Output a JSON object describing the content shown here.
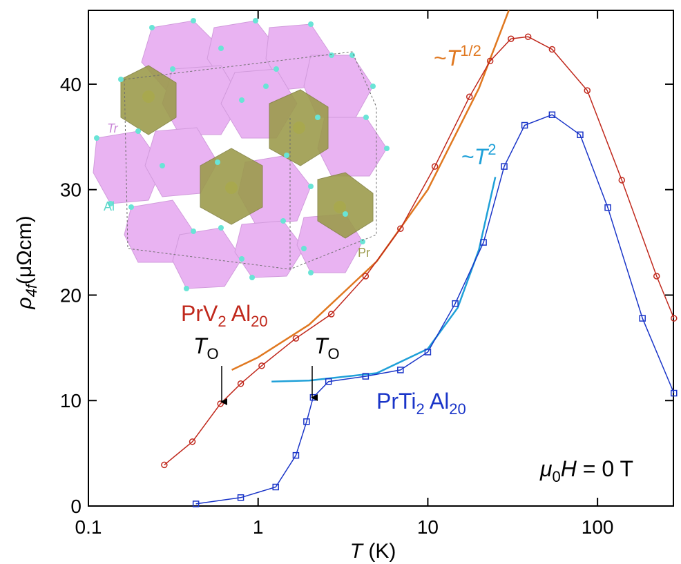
{
  "chart_data": {
    "type": "scatter",
    "xscale": "log",
    "xlim": [
      0.1,
      280
    ],
    "ylim": [
      0,
      47
    ],
    "xticks": [
      0.1,
      1,
      10,
      100
    ],
    "yticks": [
      0,
      10,
      20,
      30,
      40
    ],
    "xlabel": {
      "var": "T",
      "unit": "(K)"
    },
    "ylabel": {
      "sym": "ρ",
      "sub": "4f",
      "unit": "(μΩcm)"
    },
    "series": [
      {
        "label": [
          "PrV",
          "2",
          "Al",
          "20"
        ],
        "color": "#c0281c",
        "marker": "circle",
        "x": [
          0.28,
          0.41,
          0.6,
          0.79,
          1.05,
          1.67,
          2.7,
          4.3,
          6.9,
          11,
          17.6,
          23.3,
          30.9,
          39,
          54,
          87,
          139,
          223,
          282
        ],
        "y": [
          3.9,
          6.1,
          9.7,
          11.6,
          13.3,
          15.9,
          18.2,
          21.8,
          26.3,
          32.2,
          38.8,
          42.2,
          44.3,
          44.5,
          43.3,
          39.4,
          30.9,
          21.8,
          17.8
        ]
      },
      {
        "label": [
          "PrTi",
          "2",
          "Al",
          "20"
        ],
        "color": "#1a35c8",
        "marker": "square",
        "x": [
          0.43,
          0.79,
          1.27,
          1.67,
          1.93,
          2.11,
          2.6,
          4.3,
          6.9,
          10,
          14.5,
          21.3,
          28.2,
          37.2,
          54,
          79,
          115,
          184,
          282
        ],
        "y": [
          0.2,
          0.8,
          1.8,
          4.8,
          8.0,
          10.3,
          11.8,
          12.3,
          12.9,
          14.6,
          19.2,
          25.0,
          32.2,
          36.1,
          37.1,
          35.2,
          28.3,
          17.8,
          10.7
        ]
      }
    ],
    "fits": [
      {
        "label": [
          "~",
          "T",
          "1/2"
        ],
        "color": "#e07820",
        "x": [
          0.7,
          1,
          2,
          5,
          10,
          20,
          30
        ],
        "y": [
          12.9,
          14.1,
          17.2,
          23.2,
          30.0,
          39.6,
          47.0
        ]
      },
      {
        "label": [
          "~",
          "T",
          "2"
        ],
        "color": "#1fa0d8",
        "x": [
          1.2,
          2,
          5,
          10,
          15,
          20,
          25
        ],
        "y": [
          11.8,
          11.9,
          12.6,
          14.9,
          18.8,
          24.3,
          31.2
        ]
      }
    ],
    "transition": [
      "T",
      "O"
    ],
    "field": [
      "μ",
      "0",
      "H",
      " = 0 T"
    ],
    "inset_labels": [
      "Tr",
      "Al",
      "Pr"
    ]
  }
}
